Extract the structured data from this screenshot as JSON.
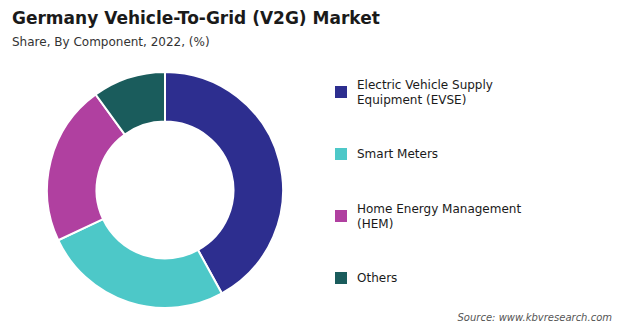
{
  "chart_data": {
    "type": "donut",
    "title": "Germany Vehicle-To-Grid (V2G) Market",
    "subtitle": "Share, By Component, 2022, (%)",
    "source": "Source: www.kbvresearch.com",
    "labels": [
      "Electric Vehicle Supply\nEquipment (EVSE)",
      "Smart Meters",
      "Home Energy Management\n(HEM)",
      "Others"
    ],
    "values": [
      42,
      26,
      22,
      10
    ],
    "colors": [
      "#2d2e8f",
      "#4dc8c8",
      "#b040a0",
      "#1a5c5c"
    ],
    "legend": "right"
  }
}
